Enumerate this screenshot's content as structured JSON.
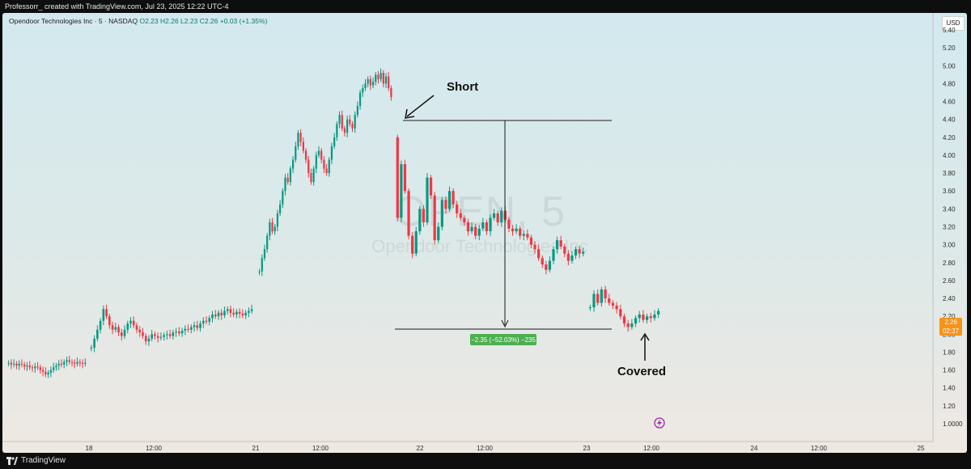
{
  "header": {
    "credit": "Professorr_ created with TradingView.com, Jul 23, 2025 12:22 UTC-4"
  },
  "legend": {
    "name": "Opendoor Technologies Inc · 5 · NASDAQ",
    "o": "O2.23",
    "h": "H2.26",
    "l": "L2.23",
    "c": "C2.26",
    "change": "+0.03 (+1.35%)"
  },
  "currency": "USD",
  "watermark": {
    "symbol": "OPEN, 5",
    "name": "Opendoor Technologies Inc"
  },
  "last_price": {
    "price": "2.26",
    "countdown": "02:37",
    "color": "#f7931a"
  },
  "annotations": {
    "short": "Short",
    "covered": "Covered",
    "measure": "−2.35 (−52.03%) −235"
  },
  "footer": {
    "brand": "TradingView"
  },
  "colors": {
    "up": "#089981",
    "down": "#f23645",
    "measure_badge": "#4caf50"
  },
  "chart_data": {
    "type": "candlestick",
    "y_ticks": [
      "5.40",
      "5.20",
      "5.00",
      "4.80",
      "4.60",
      "4.40",
      "4.20",
      "4.00",
      "3.80",
      "3.60",
      "3.40",
      "3.20",
      "3.00",
      "2.80",
      "2.60",
      "2.40",
      "2.20",
      "2.00",
      "1.80",
      "1.60",
      "1.40",
      "1.20",
      "1.0000"
    ],
    "x_ticks": [
      "18",
      "12:00",
      "21",
      "12:00",
      "22",
      "12:00",
      "23",
      "12:00",
      "24",
      "12:00",
      "25"
    ],
    "ylim": [
      0.98,
      5.55
    ],
    "grid": false,
    "series": [
      {
        "segment": "Jul 17 PM",
        "closes": [
          1.68,
          1.66,
          1.67,
          1.65,
          1.67,
          1.66,
          1.64,
          1.65,
          1.63,
          1.62,
          1.64,
          1.63,
          1.6,
          1.58,
          1.55,
          1.57,
          1.6,
          1.63,
          1.65,
          1.67,
          1.66,
          1.69,
          1.71,
          1.69,
          1.68,
          1.67,
          1.69,
          1.68,
          1.67,
          1.68
        ]
      },
      {
        "segment": "Jul 18",
        "closes": [
          1.85,
          1.95,
          2.05,
          2.15,
          2.28,
          2.2,
          2.1,
          2.05,
          2.08,
          2.02,
          1.98,
          2.05,
          2.12,
          2.15,
          2.1,
          2.05,
          2.02,
          1.98,
          1.92,
          1.95,
          2.0,
          1.98,
          1.96,
          1.97,
          1.99,
          2.0,
          1.98,
          2.02,
          2.03,
          2.01,
          2.04,
          2.06,
          2.05,
          2.08,
          2.1,
          2.07,
          2.12,
          2.15,
          2.14,
          2.18,
          2.22,
          2.2,
          2.24,
          2.21,
          2.26,
          2.28,
          2.24,
          2.22,
          2.25,
          2.23,
          2.21,
          2.24,
          2.26,
          2.28
        ]
      },
      {
        "segment": "Jul 21",
        "closes": [
          2.7,
          2.85,
          2.95,
          3.1,
          3.25,
          3.15,
          3.2,
          3.35,
          3.45,
          3.6,
          3.75,
          3.7,
          3.85,
          3.95,
          4.1,
          4.25,
          4.15,
          4.05,
          3.95,
          3.8,
          3.7,
          3.85,
          4.0,
          4.05,
          3.95,
          3.85,
          3.8,
          3.95,
          4.1,
          4.2,
          4.35,
          4.45,
          4.3,
          4.25,
          4.4,
          4.35,
          4.3,
          4.45,
          4.55,
          4.7,
          4.75,
          4.8,
          4.85,
          4.78,
          4.82,
          4.9,
          4.85,
          4.92,
          4.8,
          4.88,
          4.75,
          4.65
        ]
      },
      {
        "segment": "Jul 22",
        "closes": [
          3.3,
          3.9,
          3.6,
          3.1,
          2.9,
          3.15,
          3.4,
          3.25,
          3.75,
          3.55,
          3.05,
          3.2,
          3.5,
          3.4,
          3.6,
          3.45,
          3.35,
          3.3,
          3.25,
          3.15,
          3.2,
          3.1,
          3.18,
          3.25,
          3.15,
          3.3,
          3.35,
          3.25,
          3.38,
          3.28,
          3.18,
          3.15,
          3.18,
          3.1,
          3.12,
          3.08,
          3.0,
          2.95,
          2.85,
          2.78,
          2.72,
          2.82,
          2.95,
          3.05,
          2.98,
          2.9,
          2.82,
          2.88,
          2.95,
          2.9,
          2.92
        ]
      },
      {
        "segment": "Jul 23",
        "closes": [
          2.3,
          2.45,
          2.35,
          2.5,
          2.4,
          2.35,
          2.32,
          2.28,
          2.2,
          2.12,
          2.08,
          2.12,
          2.18,
          2.22,
          2.16,
          2.2,
          2.18,
          2.22,
          2.26
        ]
      }
    ],
    "annotated_trade": {
      "entry_price": 4.52,
      "exit_price": 2.17,
      "change": -2.35,
      "change_pct": -52.03
    }
  }
}
